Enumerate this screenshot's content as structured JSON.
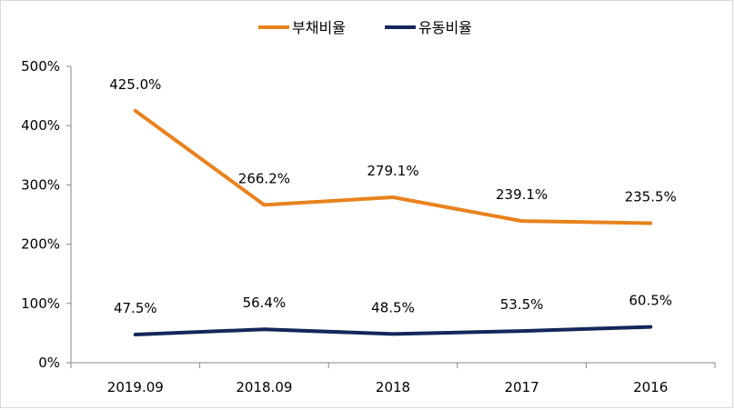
{
  "chart_data": {
    "type": "line",
    "categories": [
      "2019.09",
      "2018.09",
      "2018",
      "2017",
      "2016"
    ],
    "series": [
      {
        "name": "부채비율",
        "values": [
          425.0,
          266.2,
          279.1,
          239.1,
          235.5
        ],
        "labels": [
          "425.0%",
          "266.2%",
          "279.1%",
          "239.1%",
          "235.5%"
        ],
        "color": "#E8821E"
      },
      {
        "name": "유동비율",
        "values": [
          47.5,
          56.4,
          48.5,
          53.5,
          60.5
        ],
        "labels": [
          "47.5%",
          "56.4%",
          "48.5%",
          "53.5%",
          "60.5%"
        ],
        "color": "#14275A"
      }
    ],
    "ylim": [
      0,
      500
    ],
    "y_ticks": [
      0,
      100,
      200,
      300,
      400,
      500
    ],
    "y_tick_labels": [
      "0%",
      "100%",
      "200%",
      "300%",
      "400%",
      "500%"
    ],
    "legend_position": "top",
    "grid": false
  }
}
